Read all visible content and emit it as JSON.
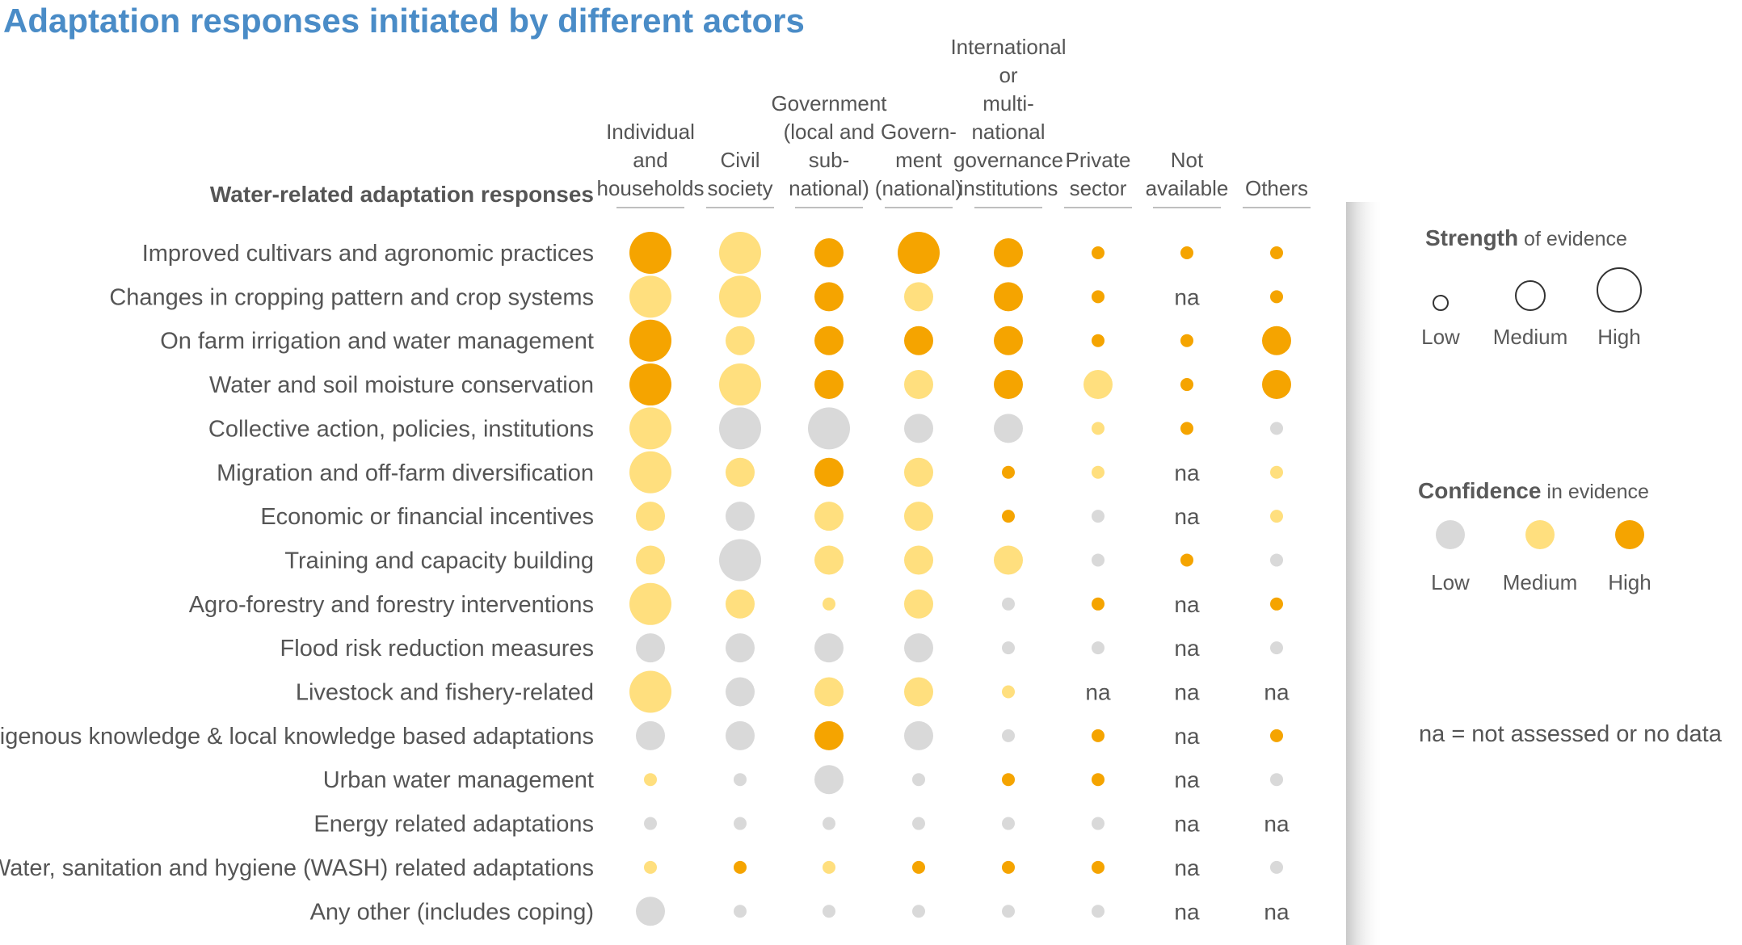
{
  "title": "Adaptation responses initiated by different actors",
  "colors": {
    "low": "#d9d9d9",
    "medium": "#ffdf7e",
    "high": "#f5a400",
    "title": "#4a8cc7"
  },
  "legend": {
    "strength": {
      "title": "Strength",
      "subtitle": "of evidence",
      "labels": [
        "Low",
        "Medium",
        "High"
      ]
    },
    "confidence": {
      "title": "Confidence",
      "subtitle": "in evidence",
      "labels": [
        "Low",
        "Medium",
        "High"
      ]
    },
    "na_note": "na  = not assessed or no data"
  },
  "chart_data": {
    "type": "bubble-matrix",
    "row_header": "Water-related adaptation responses",
    "columns": [
      [
        "Individual",
        "and",
        "households"
      ],
      [
        "Civil",
        "society"
      ],
      [
        "Government",
        "(local and",
        "sub-",
        "national)"
      ],
      [
        "Govern-",
        "ment",
        "(national)"
      ],
      [
        "International",
        "or",
        "multi-",
        "national",
        "governance",
        "institutions"
      ],
      [
        "Private",
        "sector"
      ],
      [
        "Not",
        "available"
      ],
      [
        "Others"
      ]
    ],
    "rows": [
      {
        "label": "Improved cultivars and agronomic practices",
        "cells": [
          [
            "H",
            "H"
          ],
          [
            "H",
            "M"
          ],
          [
            "M",
            "H"
          ],
          [
            "H",
            "H"
          ],
          [
            "M",
            "H"
          ],
          [
            "L",
            "H"
          ],
          [
            "L",
            "H"
          ],
          [
            "L",
            "H"
          ]
        ]
      },
      {
        "label": "Changes in cropping pattern and crop systems",
        "cells": [
          [
            "H",
            "M"
          ],
          [
            "H",
            "M"
          ],
          [
            "M",
            "H"
          ],
          [
            "M",
            "M"
          ],
          [
            "M",
            "H"
          ],
          [
            "L",
            "H"
          ],
          "na",
          [
            "L",
            "H"
          ]
        ]
      },
      {
        "label": "On farm irrigation and water management",
        "cells": [
          [
            "H",
            "H"
          ],
          [
            "M",
            "M"
          ],
          [
            "M",
            "H"
          ],
          [
            "M",
            "H"
          ],
          [
            "M",
            "H"
          ],
          [
            "L",
            "H"
          ],
          [
            "L",
            "H"
          ],
          [
            "M",
            "H"
          ]
        ]
      },
      {
        "label": "Water and soil moisture conservation",
        "cells": [
          [
            "H",
            "H"
          ],
          [
            "H",
            "M"
          ],
          [
            "M",
            "H"
          ],
          [
            "M",
            "M"
          ],
          [
            "M",
            "H"
          ],
          [
            "M",
            "M"
          ],
          [
            "L",
            "H"
          ],
          [
            "M",
            "H"
          ]
        ]
      },
      {
        "label": "Collective action, policies, institutions",
        "cells": [
          [
            "H",
            "M"
          ],
          [
            "H",
            "L"
          ],
          [
            "H",
            "L"
          ],
          [
            "M",
            "L"
          ],
          [
            "M",
            "L"
          ],
          [
            "L",
            "M"
          ],
          [
            "L",
            "H"
          ],
          [
            "L",
            "L"
          ]
        ]
      },
      {
        "label": "Migration and off-farm diversification",
        "cells": [
          [
            "H",
            "M"
          ],
          [
            "M",
            "M"
          ],
          [
            "M",
            "H"
          ],
          [
            "M",
            "M"
          ],
          [
            "L",
            "H"
          ],
          [
            "L",
            "M"
          ],
          "na",
          [
            "L",
            "M"
          ]
        ]
      },
      {
        "label": "Economic or financial incentives",
        "cells": [
          [
            "M",
            "M"
          ],
          [
            "M",
            "L"
          ],
          [
            "M",
            "M"
          ],
          [
            "M",
            "M"
          ],
          [
            "L",
            "H"
          ],
          [
            "L",
            "L"
          ],
          "na",
          [
            "L",
            "M"
          ]
        ]
      },
      {
        "label": "Training and capacity building",
        "cells": [
          [
            "M",
            "M"
          ],
          [
            "H",
            "L"
          ],
          [
            "M",
            "M"
          ],
          [
            "M",
            "M"
          ],
          [
            "M",
            "M"
          ],
          [
            "L",
            "L"
          ],
          [
            "L",
            "H"
          ],
          [
            "L",
            "L"
          ]
        ]
      },
      {
        "label": "Agro-forestry and forestry interventions",
        "cells": [
          [
            "H",
            "M"
          ],
          [
            "M",
            "M"
          ],
          [
            "L",
            "M"
          ],
          [
            "M",
            "M"
          ],
          [
            "L",
            "L"
          ],
          [
            "L",
            "H"
          ],
          "na",
          [
            "L",
            "H"
          ]
        ]
      },
      {
        "label": "Flood risk reduction measures",
        "cells": [
          [
            "M",
            "L"
          ],
          [
            "M",
            "L"
          ],
          [
            "M",
            "L"
          ],
          [
            "M",
            "L"
          ],
          [
            "L",
            "L"
          ],
          [
            "L",
            "L"
          ],
          "na",
          [
            "L",
            "L"
          ]
        ]
      },
      {
        "label": "Livestock and fishery-related",
        "cells": [
          [
            "H",
            "M"
          ],
          [
            "M",
            "L"
          ],
          [
            "M",
            "M"
          ],
          [
            "M",
            "M"
          ],
          [
            "L",
            "M"
          ],
          "na",
          "na",
          "na"
        ]
      },
      {
        "label": "Indigenous knowledge & local knowledge based adaptations",
        "cells": [
          [
            "M",
            "L"
          ],
          [
            "M",
            "L"
          ],
          [
            "M",
            "H"
          ],
          [
            "M",
            "L"
          ],
          [
            "L",
            "L"
          ],
          [
            "L",
            "H"
          ],
          "na",
          [
            "L",
            "H"
          ]
        ]
      },
      {
        "label": "Urban water management",
        "cells": [
          [
            "L",
            "M"
          ],
          [
            "L",
            "L"
          ],
          [
            "M",
            "L"
          ],
          [
            "L",
            "L"
          ],
          [
            "L",
            "H"
          ],
          [
            "L",
            "H"
          ],
          "na",
          [
            "L",
            "L"
          ]
        ]
      },
      {
        "label": "Energy related adaptations",
        "cells": [
          [
            "L",
            "L"
          ],
          [
            "L",
            "L"
          ],
          [
            "L",
            "L"
          ],
          [
            "L",
            "L"
          ],
          [
            "L",
            "L"
          ],
          [
            "L",
            "L"
          ],
          "na",
          "na"
        ]
      },
      {
        "label": "Water, sanitation and hygiene (WASH) related adaptations",
        "cells": [
          [
            "L",
            "M"
          ],
          [
            "L",
            "H"
          ],
          [
            "L",
            "M"
          ],
          [
            "L",
            "H"
          ],
          [
            "L",
            "H"
          ],
          [
            "L",
            "H"
          ],
          "na",
          [
            "L",
            "L"
          ]
        ]
      },
      {
        "label": "Any other (includes coping)",
        "cells": [
          [
            "M",
            "L"
          ],
          [
            "L",
            "L"
          ],
          [
            "L",
            "L"
          ],
          [
            "L",
            "L"
          ],
          [
            "L",
            "L"
          ],
          [
            "L",
            "L"
          ],
          "na",
          "na"
        ]
      }
    ],
    "na_text": "na",
    "encoding": {
      "size": "strength of evidence (L/M/H)",
      "color": "confidence in evidence (L/M/H)"
    }
  }
}
